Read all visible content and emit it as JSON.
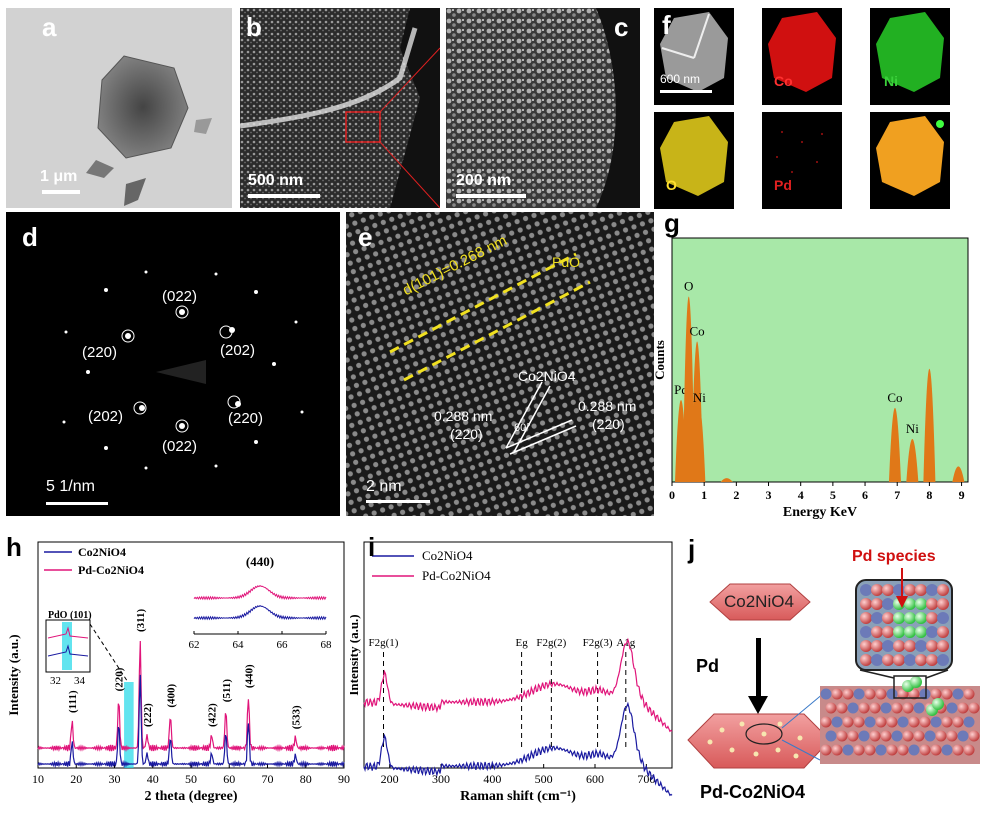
{
  "panels": {
    "a": {
      "label": "a",
      "scale": "1 μm"
    },
    "b": {
      "label": "b",
      "scale": "500 nm"
    },
    "c": {
      "label": "c",
      "scale": "200 nm"
    },
    "d": {
      "label": "d",
      "scale": "5 1/nm",
      "spots": [
        "(022)",
        "(220)",
        "(202)",
        "(202)",
        "(220)",
        "(022)"
      ]
    },
    "e": {
      "label": "e",
      "scale": "2 nm",
      "pdo_label": "PdO",
      "pdo_spacing": "d(101)=0.268 nm",
      "phase": "Co2NiO4",
      "left_spacing": "0.288 nm",
      "left_plane": "(220)",
      "right_spacing": "0.288 nm",
      "right_plane": "(220)",
      "angle": "60°"
    },
    "f": {
      "label": "f",
      "scale": "600 nm",
      "maps": [
        {
          "element": "",
          "color": "#bcbcbc"
        },
        {
          "element": "Co",
          "color": "#d01010"
        },
        {
          "element": "Ni",
          "color": "#22b022"
        },
        {
          "element": "O",
          "color": "#d8c420"
        },
        {
          "element": "Pd",
          "color": "#c01010"
        },
        {
          "element": "",
          "color": "#f0a020"
        }
      ]
    },
    "g": {
      "label": "g"
    },
    "h": {
      "label": "h",
      "legend": [
        "Co2NiO4",
        "Pd-Co2NiO4"
      ],
      "inset_left_title": "PdO (101)",
      "inset_right_title": "(440)"
    },
    "i": {
      "label": "i",
      "legend": [
        "Co2NiO4",
        "Pd-Co2NiO4"
      ]
    },
    "j": {
      "label": "j",
      "top_hex": "Co2NiO4",
      "arrow_label": "Pd",
      "bottom_label": "Pd-Co2NiO4",
      "species_label": "Pd species"
    }
  },
  "chart_data": [
    {
      "type": "bar",
      "title": "",
      "xlabel": "Energy KeV",
      "ylabel": "Counts",
      "xlim": [
        0,
        9.2
      ],
      "xticks": [
        "0",
        "1",
        "2",
        "3",
        "4",
        "5",
        "6",
        "7",
        "8",
        "9"
      ],
      "background": "#a8e8a8",
      "bar_color": "#e07818",
      "peaks": [
        {
          "x": 0.28,
          "h": 0.42,
          "label": "Pd"
        },
        {
          "x": 0.52,
          "h": 0.95,
          "label": "O"
        },
        {
          "x": 0.78,
          "h": 0.72,
          "label": "Co"
        },
        {
          "x": 0.85,
          "h": 0.38,
          "label": "Ni"
        },
        {
          "x": 1.7,
          "h": 0.02,
          "label": ""
        },
        {
          "x": 6.93,
          "h": 0.38,
          "label": "Co"
        },
        {
          "x": 7.47,
          "h": 0.22,
          "label": "Ni"
        },
        {
          "x": 8.0,
          "h": 0.58,
          "label": ""
        },
        {
          "x": 8.9,
          "h": 0.08,
          "label": ""
        }
      ]
    },
    {
      "type": "line",
      "title": "",
      "xlabel": "2 theta (degree)",
      "ylabel": "Intensity (a.u.)",
      "xlim": [
        10,
        90
      ],
      "xticks": [
        "10",
        "20",
        "30",
        "40",
        "50",
        "60",
        "70",
        "80",
        "90"
      ],
      "series": [
        {
          "name": "Co2NiO4",
          "color": "#1a1aa0"
        },
        {
          "name": "Pd-Co2NiO4",
          "color": "#e0157a"
        }
      ],
      "peaks": [
        {
          "x": 18.9,
          "label": "(111)",
          "h": 0.25
        },
        {
          "x": 31.1,
          "label": "(220)",
          "h": 0.45
        },
        {
          "x": 36.7,
          "label": "(311)",
          "h": 1.0
        },
        {
          "x": 38.5,
          "label": "(222)",
          "h": 0.12
        },
        {
          "x": 44.6,
          "label": "(400)",
          "h": 0.3
        },
        {
          "x": 55.4,
          "label": "(422)",
          "h": 0.12
        },
        {
          "x": 59.1,
          "label": "(511)",
          "h": 0.35
        },
        {
          "x": 65.0,
          "label": "(440)",
          "h": 0.48
        },
        {
          "x": 77.3,
          "label": "(533)",
          "h": 0.1
        }
      ],
      "inset_left": {
        "xticks": [
          "32",
          "34"
        ]
      },
      "inset_right": {
        "xlim": [
          62,
          68
        ],
        "xticks": [
          "62",
          "64",
          "66",
          "68"
        ]
      }
    },
    {
      "type": "line",
      "title": "",
      "xlabel": "Raman shift (cm⁻¹)",
      "ylabel": "Intensity (a.u.)",
      "xlim": [
        150,
        750
      ],
      "xticks": [
        "200",
        "300",
        "400",
        "500",
        "600",
        "700"
      ],
      "series": [
        {
          "name": "Co2NiO4",
          "color": "#1a1aa0"
        },
        {
          "name": "Pd-Co2NiO4",
          "color": "#e0157a"
        }
      ],
      "modes": [
        {
          "x": 188,
          "label": "F2g(1)"
        },
        {
          "x": 457,
          "label": "Eg"
        },
        {
          "x": 515,
          "label": "F2g(2)"
        },
        {
          "x": 605,
          "label": "F2g(3)"
        },
        {
          "x": 660,
          "label": "A1g"
        }
      ]
    }
  ]
}
